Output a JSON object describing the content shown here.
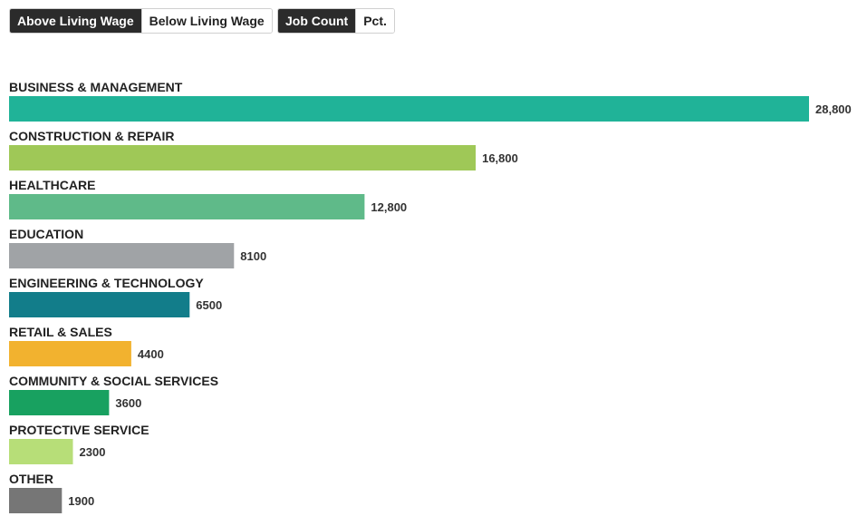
{
  "controls": {
    "wage_toggle": {
      "options": [
        "Above Living Wage",
        "Below Living Wage"
      ],
      "selected": "Above Living Wage"
    },
    "metric_toggle": {
      "options": [
        "Job Count",
        "Pct."
      ],
      "selected": "Job Count"
    }
  },
  "chart_data": {
    "type": "bar",
    "orientation": "horizontal",
    "categories": [
      "BUSINESS & MANAGEMENT",
      "CONSTRUCTION & REPAIR",
      "HEALTHCARE",
      "EDUCATION",
      "ENGINEERING & TECHNOLOGY",
      "RETAIL & SALES",
      "COMMUNITY & SOCIAL SERVICES",
      "PROTECTIVE SERVICE",
      "OTHER"
    ],
    "values": [
      28800,
      16800,
      12800,
      8100,
      6500,
      4400,
      3600,
      2300,
      1900
    ],
    "value_labels": [
      "28,800",
      "16,800",
      "12,800",
      "8100",
      "6500",
      "4400",
      "3600",
      "2300",
      "1900"
    ],
    "colors": [
      "#20b398",
      "#9fc857",
      "#5fba89",
      "#a0a3a6",
      "#127d8a",
      "#f2b22f",
      "#18a160",
      "#b7de78",
      "#767676"
    ],
    "title": "",
    "xlabel": "",
    "ylabel": "",
    "xlim": [
      0,
      28800
    ],
    "grid": false,
    "legend": "none"
  }
}
